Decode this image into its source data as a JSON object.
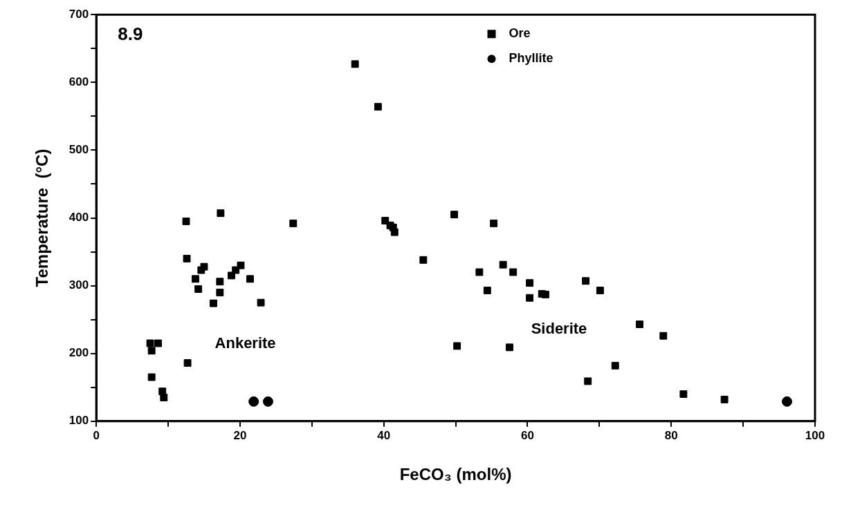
{
  "chart_data": {
    "type": "scatter",
    "xlabel": "FeCO₃ (mol%)",
    "ylabel": "Temperature  (°C)",
    "xlim": [
      0,
      100
    ],
    "ylim": [
      100,
      700
    ],
    "xticks": [
      0,
      {
        "value": 10,
        "label": null
      },
      20,
      {
        "value": 30,
        "label": null
      },
      40,
      {
        "value": 50,
        "label": null
      },
      60,
      {
        "value": 70,
        "label": null
      },
      80,
      {
        "value": 90,
        "label": null
      },
      100
    ],
    "yticks": [
      100,
      {
        "value": 150,
        "label": null
      },
      200,
      {
        "value": 250,
        "label": null
      },
      300,
      {
        "value": 350,
        "label": null
      },
      400,
      {
        "value": 450,
        "label": null
      },
      500,
      {
        "value": 550,
        "label": null
      },
      600,
      {
        "value": 650,
        "label": null
      },
      700
    ],
    "grid": false,
    "legend": "top right",
    "annotations": [
      "8.9",
      "Ankerite",
      "Siderite"
    ],
    "series": [
      {
        "name": "Ore",
        "color": "#000000",
        "marker": "square",
        "x": [
          12.5,
          17.3,
          27.4,
          12.6,
          15,
          14.6,
          13.8,
          14.2,
          16.3,
          17.2,
          17.2,
          18.8,
          19.4,
          20.1,
          21.4,
          22.9,
          7.5,
          8.6,
          7.7,
          12.7,
          7.7,
          9.2,
          9.4,
          36,
          39.2,
          40.2,
          40.9,
          41.3,
          41.5,
          49.8,
          55.3,
          45.5,
          53.3,
          56.6,
          58,
          54.4,
          60.3,
          60.3,
          62,
          62.5,
          68.1,
          70.1,
          50.2,
          57.5,
          75.6,
          78.9,
          72.2,
          68.4,
          81.7,
          87.4
        ],
        "values": [
          395,
          407,
          392,
          340,
          328,
          323,
          310,
          295,
          274,
          290,
          306,
          315,
          323,
          330,
          310,
          275,
          215,
          215,
          204,
          186,
          165,
          144,
          135,
          627,
          564,
          396,
          389,
          386,
          379,
          405,
          392,
          338,
          320,
          331,
          320,
          293,
          304,
          282,
          288,
          287,
          307,
          293,
          211,
          209,
          243,
          226,
          182,
          159,
          140,
          132
        ]
      },
      {
        "name": "Phyllite",
        "color": "#000000",
        "marker": "circle",
        "x": [
          21.9,
          23.9,
          96.1
        ],
        "values": [
          129,
          129,
          129
        ]
      }
    ]
  }
}
